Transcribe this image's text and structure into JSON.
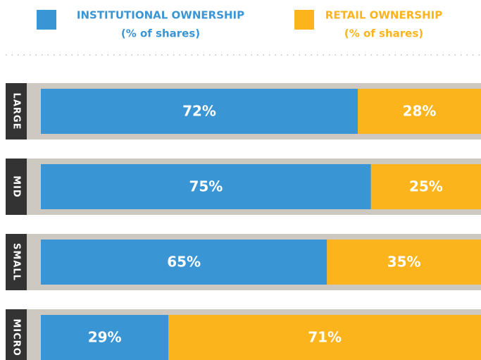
{
  "chart_data": {
    "type": "stacked_bar_horizontal",
    "categories": [
      "LARGE",
      "MID",
      "SMALL",
      "MICRO"
    ],
    "series": [
      {
        "name": "INSTITUTIONAL OWNERSHIP",
        "unit_label": "(% of shares)",
        "color": "#3a95d5",
        "values": [
          72,
          75,
          65,
          29
        ],
        "value_labels": [
          "72%",
          "75%",
          "65%",
          "29%"
        ]
      },
      {
        "name": "RETAIL OWNERSHIP",
        "unit_label": "(% of shares)",
        "color": "#fbb41c",
        "values": [
          28,
          25,
          35,
          71
        ],
        "value_labels": [
          "28%",
          "25%",
          "35%",
          "71%"
        ]
      }
    ],
    "xlim": [
      0,
      100
    ]
  }
}
